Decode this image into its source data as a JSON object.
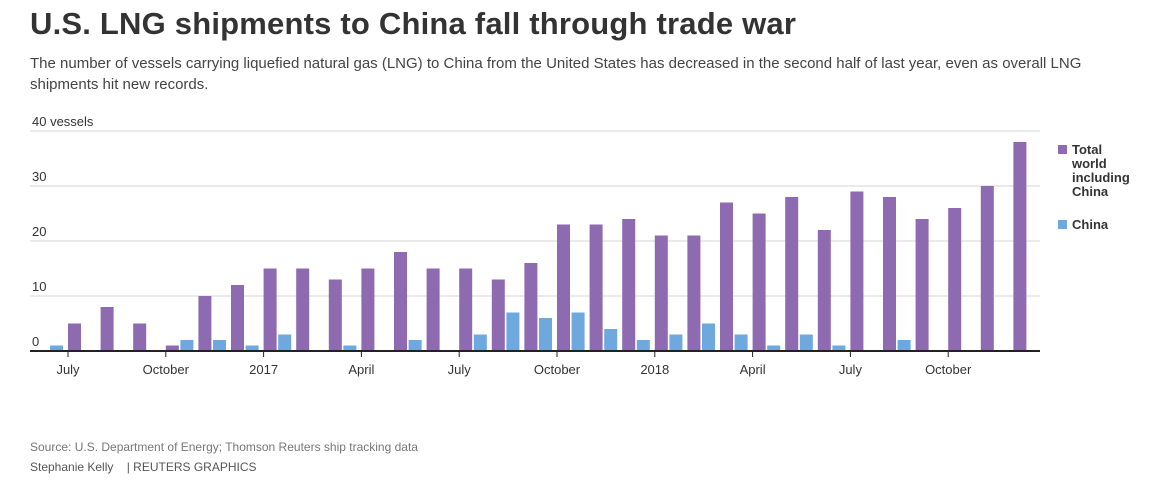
{
  "title": "U.S. LNG shipments to China fall through trade war",
  "subtitle": "The number of vessels carrying liquefied natural gas (LNG) to China from the United States has decreased in the second half of last year, even as overall LNG shipments hit new records.",
  "source": "Source: U.S. Department of Energy; Thomson Reuters ship tracking data",
  "credit": "Stephanie Kelly    | REUTERS GRAPHICS",
  "colors": {
    "total": "#8e6bb0",
    "china": "#6fa8dc",
    "grid": "#d4d4d4",
    "axis": "#222222"
  },
  "chart_data": {
    "type": "bar",
    "ylim": [
      0,
      40
    ],
    "y_ticks": [
      {
        "value": 0,
        "label": "0"
      },
      {
        "value": 10,
        "label": "10"
      },
      {
        "value": 20,
        "label": "20"
      },
      {
        "value": 30,
        "label": "30"
      },
      {
        "value": 40,
        "label": "40 vessels"
      }
    ],
    "categories": [
      "Jul 2016",
      "Aug 2016",
      "Sep 2016",
      "Oct 2016",
      "Nov 2016",
      "Dec 2016",
      "Jan 2017",
      "Feb 2017",
      "Mar 2017",
      "Apr 2017",
      "May 2017",
      "Jun 2017",
      "Jul 2017",
      "Aug 2017",
      "Sep 2017",
      "Oct 2017",
      "Nov 2017",
      "Dec 2017",
      "Jan 2018",
      "Feb 2018",
      "Mar 2018",
      "Apr 2018",
      "May 2018",
      "Jun 2018",
      "Jul 2018",
      "Aug 2018",
      "Sep 2018",
      "Oct 2018",
      "Nov 2018",
      "Dec 2018"
    ],
    "x_tick_labels": [
      {
        "index": 0,
        "label": "July"
      },
      {
        "index": 3,
        "label": "October"
      },
      {
        "index": 6,
        "label": "2017"
      },
      {
        "index": 9,
        "label": "April"
      },
      {
        "index": 12,
        "label": "July"
      },
      {
        "index": 15,
        "label": "October"
      },
      {
        "index": 18,
        "label": "2018"
      },
      {
        "index": 21,
        "label": "April"
      },
      {
        "index": 24,
        "label": "July"
      },
      {
        "index": 27,
        "label": "October"
      }
    ],
    "series": [
      {
        "name": "Total world including China",
        "values": [
          5,
          8,
          5,
          1,
          10,
          12,
          15,
          15,
          13,
          15,
          18,
          15,
          15,
          13,
          16,
          23,
          23,
          24,
          21,
          21,
          27,
          25,
          28,
          22,
          29,
          28,
          24,
          26,
          30,
          38
        ]
      },
      {
        "name": "China",
        "values": [
          1,
          0,
          0,
          0,
          2,
          2,
          1,
          3,
          0,
          1,
          0,
          2,
          0,
          3,
          7,
          6,
          7,
          4,
          2,
          3,
          5,
          3,
          1,
          3,
          1,
          0,
          2,
          0,
          0,
          0
        ]
      }
    ],
    "legend_position": "right"
  }
}
